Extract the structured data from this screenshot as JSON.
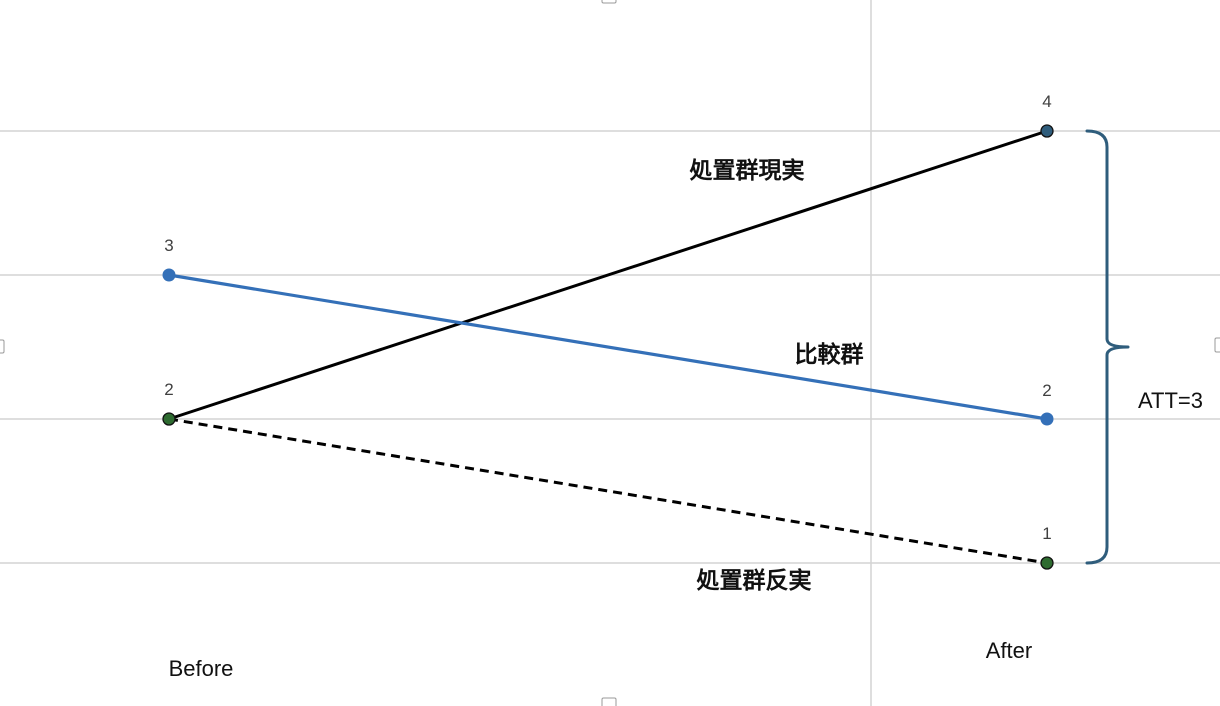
{
  "chart_data": {
    "type": "line",
    "categories": [
      "Before",
      "After"
    ],
    "ylim": [
      0.5,
      4.8
    ],
    "grid": true,
    "series": [
      {
        "key": "treated_actual",
        "name": "処置群現実",
        "values": [
          2,
          4
        ],
        "color": "#000000",
        "marker_color": "#2e6b30",
        "end_marker_color": "#2f5d7c",
        "style": "solid"
      },
      {
        "key": "comparison",
        "name": "比較群",
        "values": [
          3,
          2
        ],
        "color": "#3470b8",
        "marker_color": "#3470b8",
        "style": "solid"
      },
      {
        "key": "treated_counterfactual",
        "name": "処置群反実",
        "values": [
          2,
          1
        ],
        "color": "#000000",
        "marker_color": "#2e6b30",
        "style": "dashed"
      }
    ],
    "point_labels": {
      "before": [
        "3",
        "2"
      ],
      "after": [
        "4",
        "2",
        "1"
      ]
    },
    "annotation": {
      "text": "ATT=3",
      "from": 1,
      "to": 4,
      "brace_color": "#2f5d7c"
    }
  }
}
